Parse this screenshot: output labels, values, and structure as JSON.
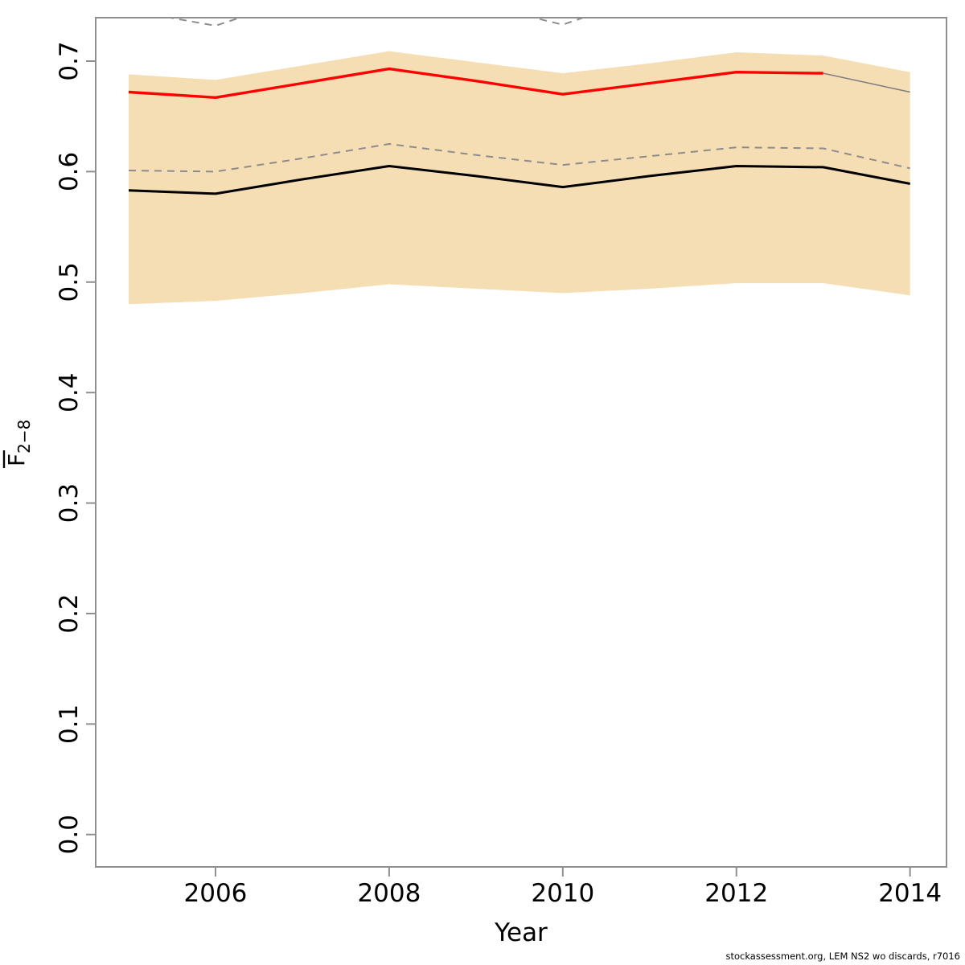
{
  "footer": {
    "text": "stockassessment.org, LEM NS2 wo discards, r7016"
  },
  "chart_data": {
    "type": "line",
    "title": "",
    "xlabel": "Year",
    "ylabel": "F-bar 2-8 (mean fishing mortality, ages 2-8)",
    "ylabel_main": "F",
    "ylabel_sub": "2−8",
    "ylabel_overbar": true,
    "x": [
      2005,
      2006,
      2007,
      2008,
      2009,
      2010,
      2011,
      2012,
      2013,
      2014
    ],
    "x_ticks": [
      2006,
      2008,
      2010,
      2012,
      2014
    ],
    "x_tick_labels": [
      "2006",
      "2008",
      "2010",
      "2012",
      "2014"
    ],
    "y_ticks": [
      0.0,
      0.1,
      0.2,
      0.3,
      0.4,
      0.5,
      0.6,
      0.7
    ],
    "y_tick_labels": [
      "0.0",
      "0.1",
      "0.2",
      "0.3",
      "0.4",
      "0.5",
      "0.6",
      "0.7"
    ],
    "xlim": [
      2004.62,
      2014.42
    ],
    "ylim": [
      -0.0293,
      0.7393
    ],
    "grid": false,
    "legend": null,
    "band": {
      "name": "confidence-band",
      "color": "#f5deb3",
      "upper": [
        0.688,
        0.683,
        0.696,
        0.709,
        0.699,
        0.689,
        0.698,
        0.708,
        0.705,
        0.69
      ],
      "lower": [
        0.48,
        0.483,
        0.49,
        0.498,
        0.494,
        0.49,
        0.494,
        0.499,
        0.499,
        0.488
      ]
    },
    "series": [
      {
        "name": "upper-dashed-line",
        "color": "#8c8c8c",
        "style": "dashed",
        "width": 2,
        "values": [
          0.746,
          0.732,
          0.758,
          0.775,
          0.752,
          0.733,
          0.76,
          0.775,
          0.77,
          0.745
        ]
      },
      {
        "name": "mid-dashed-line",
        "color": "#8c8c8c",
        "style": "dashed",
        "width": 2,
        "values": [
          0.601,
          0.6,
          0.612,
          0.625,
          0.615,
          0.606,
          0.614,
          0.622,
          0.621,
          0.603
        ]
      },
      {
        "name": "estimate-line",
        "color": "#000000",
        "style": "solid",
        "width": 3,
        "values": [
          0.583,
          0.58,
          0.593,
          0.605,
          0.596,
          0.586,
          0.596,
          0.605,
          0.604,
          0.589
        ]
      },
      {
        "name": "red-line",
        "color": "#ff0000",
        "style": "solid",
        "width": 3.4,
        "values": [
          0.672,
          0.667,
          0.68,
          0.693,
          0.682,
          0.67,
          0.68,
          0.69,
          0.689,
          null
        ]
      },
      {
        "name": "gray-tail-line",
        "color": "#7f7f7f",
        "style": "solid",
        "width": 1.6,
        "values": [
          null,
          null,
          null,
          null,
          null,
          null,
          null,
          null,
          0.689,
          0.672
        ]
      }
    ],
    "frame_color": "#8f8f8f",
    "tick_color": "#8f8f8f",
    "text_color": "#000000"
  }
}
